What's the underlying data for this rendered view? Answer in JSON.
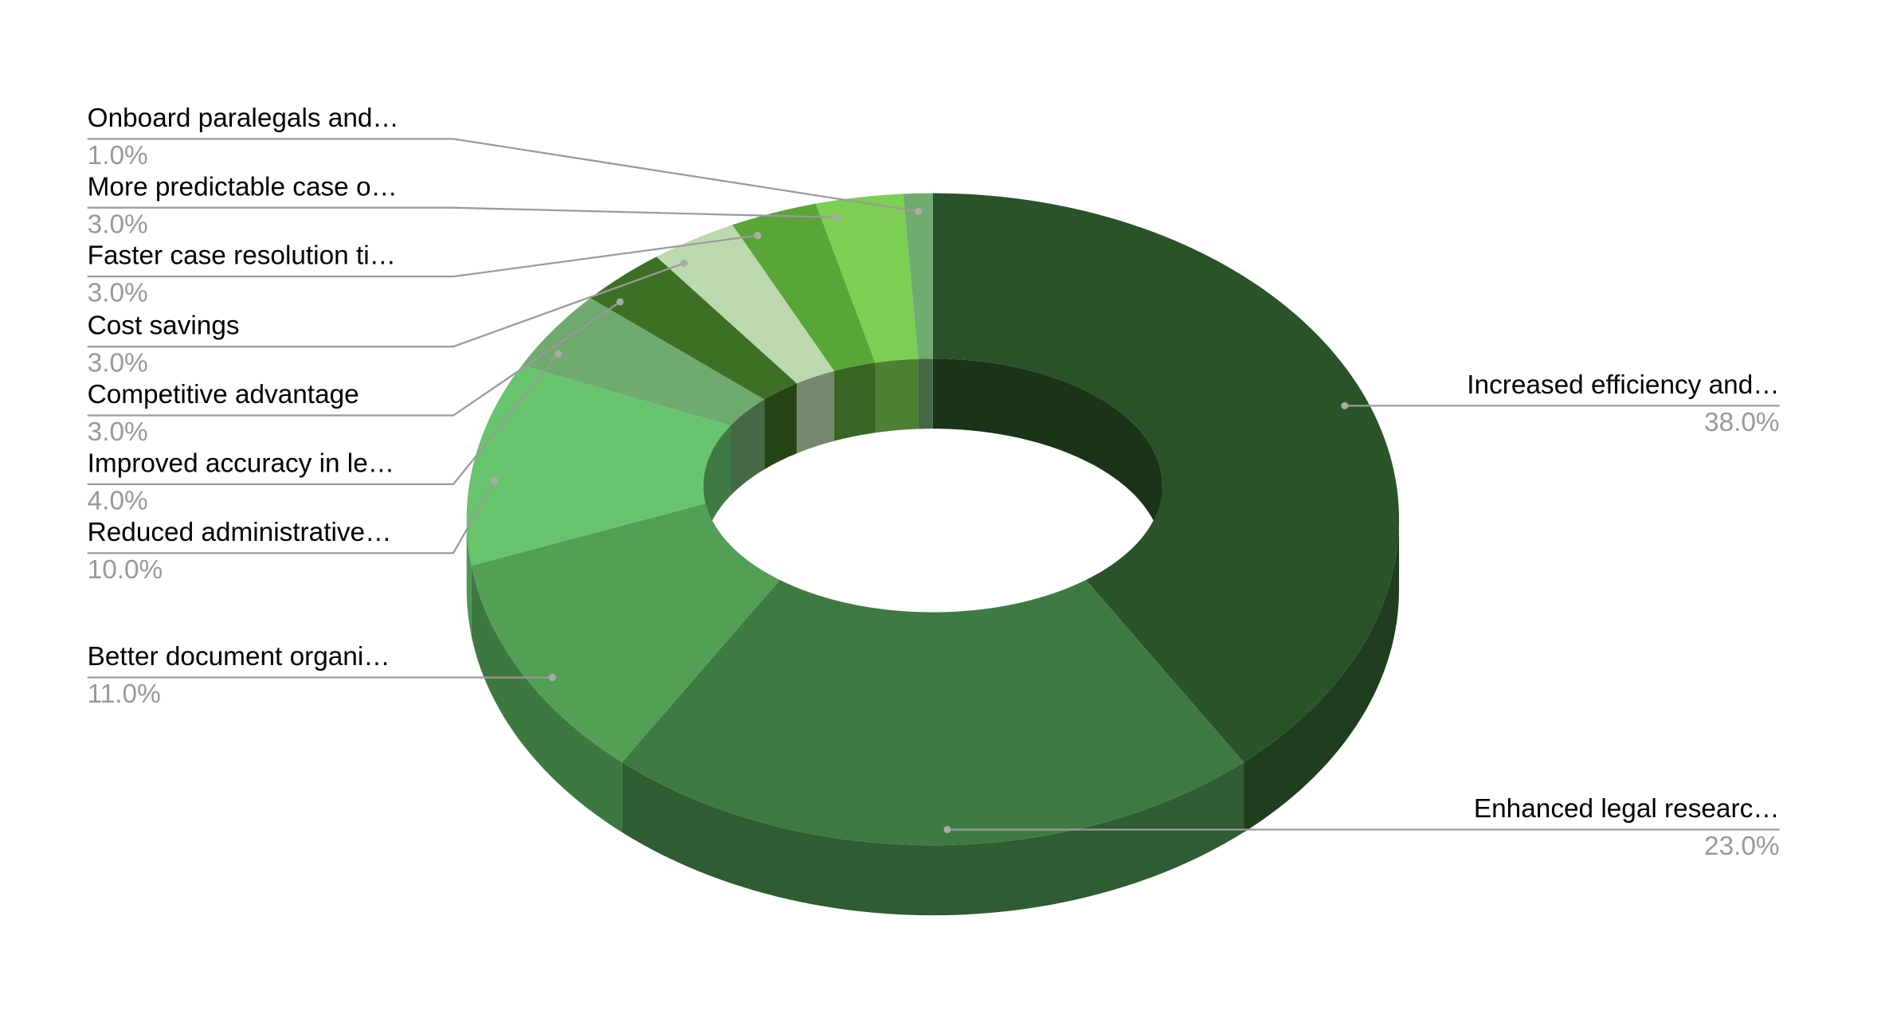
{
  "chart_data": {
    "type": "pie",
    "categories": [
      "Increased efficiency and…",
      "Enhanced legal researc…",
      "Better document organi…",
      "Reduced administrative…",
      "Improved accuracy in le…",
      "Competitive advantage",
      "Cost savings",
      "Faster case resolution ti…",
      "More predictable case o…",
      "Onboard paralegals and…"
    ],
    "values": [
      38,
      23,
      11,
      10,
      4,
      3,
      3,
      3,
      3,
      1
    ],
    "value_labels": [
      "38.0%",
      "23.0%",
      "11.0%",
      "10.0%",
      "4.0%",
      "3.0%",
      "3.0%",
      "3.0%",
      "3.0%",
      "1.0%"
    ],
    "colors": [
      "#2b5329",
      "#3e7b42",
      "#52a056",
      "#67c46c",
      "#6faa6f",
      "#3d7025",
      "#bcd9ae",
      "#5aa537",
      "#7ccf52",
      "#6faa6f"
    ]
  }
}
